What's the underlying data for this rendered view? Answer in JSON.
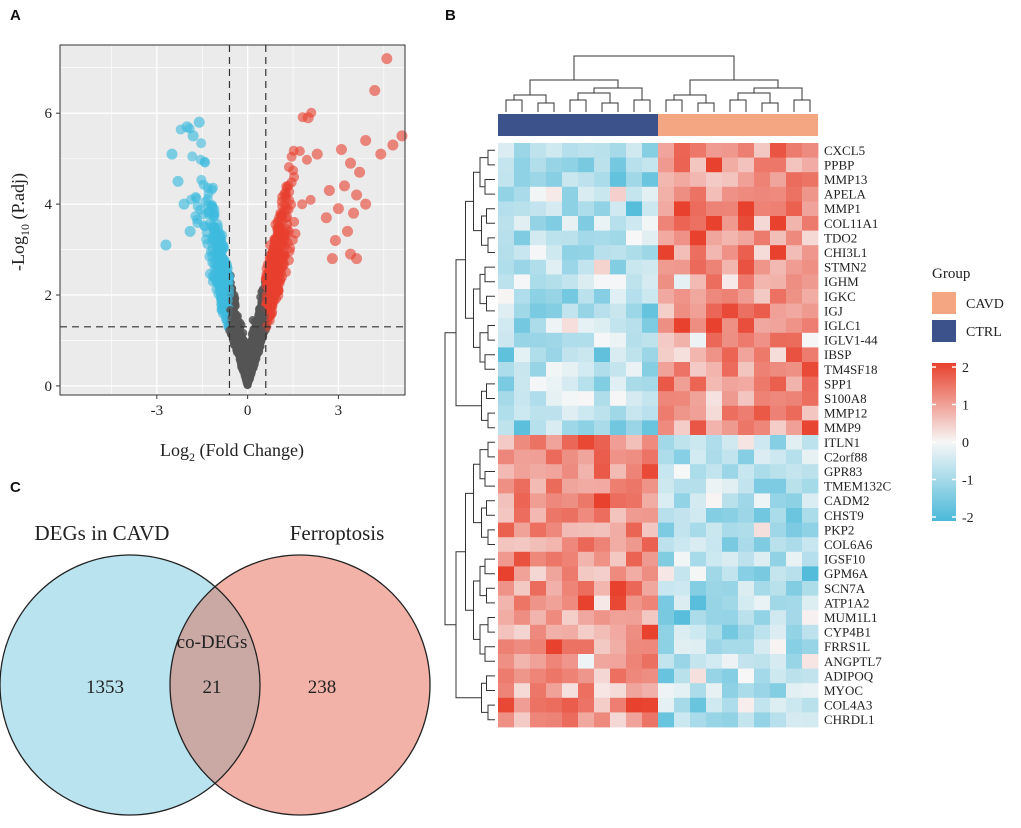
{
  "panels": {
    "a": "A",
    "b": "B",
    "c": "C"
  },
  "chart_data": [
    {
      "type": "scatter",
      "name": "volcano-plot",
      "xlabel_main": "Log",
      "xlabel_sub": "2",
      "xlabel_rest": " (Fold Change)",
      "ylabel_main": "-Log",
      "ylabel_sub": "10",
      "ylabel_rest": " (P.adj)",
      "xlim": [
        -6.2,
        5.2
      ],
      "ylim": [
        -0.2,
        7.5
      ],
      "xticks": [
        -3,
        0,
        3
      ],
      "yticks": [
        0,
        2,
        4,
        6
      ],
      "fc_threshold": 0.6,
      "padj_threshold": 1.3,
      "colors": {
        "up": "#e8402f",
        "down": "#3dbbdd",
        "ns": "#555555",
        "panel_bg": "#ebebeb",
        "grid": "#ffffff"
      },
      "highlight_points": {
        "up": [
          [
            4.6,
            7.2
          ],
          [
            4.2,
            6.5
          ],
          [
            4.4,
            5.1
          ],
          [
            4.8,
            5.3
          ],
          [
            5.1,
            5.5
          ],
          [
            3.9,
            5.4
          ],
          [
            3.7,
            4.7
          ],
          [
            3.4,
            4.9
          ],
          [
            3.1,
            5.2
          ],
          [
            3.6,
            4.2
          ],
          [
            3.9,
            4.0
          ],
          [
            3.2,
            4.4
          ],
          [
            2.7,
            4.3
          ],
          [
            3.5,
            3.8
          ],
          [
            3.3,
            3.4
          ],
          [
            2.9,
            3.2
          ],
          [
            3.0,
            3.9
          ],
          [
            2.8,
            2.8
          ],
          [
            3.4,
            2.9
          ],
          [
            3.6,
            2.8
          ],
          [
            2.6,
            3.7
          ],
          [
            2.3,
            5.1
          ],
          [
            2.0,
            5.9
          ]
        ],
        "down": [
          [
            -2.7,
            3.1
          ],
          [
            -2.3,
            4.5
          ],
          [
            -2.5,
            5.1
          ],
          [
            -2.0,
            5.7
          ],
          [
            -1.8,
            5.5
          ],
          [
            -2.1,
            4.0
          ],
          [
            -1.6,
            5.8
          ],
          [
            -1.9,
            3.4
          ]
        ]
      }
    },
    {
      "type": "heatmap",
      "name": "deg-heatmap",
      "genes": [
        "CXCL5",
        "PPBP",
        "MMP13",
        "APELA",
        "MMP1",
        "COL11A1",
        "TDO2",
        "CHI3L1",
        "STMN2",
        "IGHM",
        "IGKC",
        "IGJ",
        "IGLC1",
        "IGLV1-44",
        "IBSP",
        "TM4SF18",
        "SPP1",
        "S100A8",
        "MMP12",
        "MMP9",
        "ITLN1",
        "C2orf88",
        "GPR83",
        "TMEM132C",
        "CADM2",
        "CHST9",
        "PKP2",
        "COL6A6",
        "IGSF10",
        "GPM6A",
        "SCN7A",
        "ATP1A2",
        "MUM1L1",
        "CYP4B1",
        "FRRS1L",
        "ANGPTL7",
        "ADIPOQ",
        "MYOC",
        "COL4A3",
        "CHRDL1"
      ],
      "n_ctrl": 10,
      "n_cavd": 10,
      "up_genes": 20,
      "legend_title": "Group",
      "legend_groups": [
        {
          "label": "CAVD",
          "color": "#f4a582"
        },
        {
          "label": "CTRL",
          "color": "#3b528b"
        }
      ],
      "colorbar_ticks": [
        "2",
        "1",
        "0",
        "-1",
        "-2"
      ],
      "colorbar_range": [
        -2,
        2
      ],
      "color_low": "#4ab9d9",
      "color_mid": "#f7f7f7",
      "color_high": "#e8412d"
    },
    {
      "type": "venn",
      "name": "venn-diagram",
      "sets": [
        {
          "label": "DEGs in CAVD",
          "only": 1353,
          "color": "#b9e3ef"
        },
        {
          "label": "Ferroptosis",
          "only": 238,
          "color": "#f3b2a8"
        }
      ],
      "overlap_label": "co-DEGs",
      "overlap_count": 21,
      "overlap_color": "#caa9a5"
    }
  ]
}
